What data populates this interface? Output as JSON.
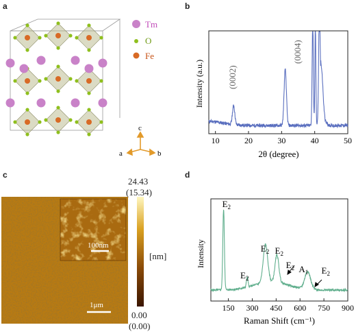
{
  "panels": {
    "a": {
      "letter": "a",
      "legend": [
        {
          "label": "Tm",
          "color": "#c982c8"
        },
        {
          "label": "O",
          "color": "#8fbf1e"
        },
        {
          "label": "Fe",
          "color": "#d86a25"
        }
      ],
      "axes": {
        "c": "c",
        "a": "a",
        "b": "b"
      }
    },
    "b": {
      "letter": "b",
      "ylabel": "Intensity (a.u.)",
      "xlabel": "2θ (degree)",
      "annotations": [
        "(0002)",
        "(0004)"
      ]
    },
    "c": {
      "letter": "c",
      "colorbar_top": "24.43",
      "colorbar_top_paren": "(15.34)",
      "colorbar_unit": "[nm]",
      "colorbar_bottom": "0.00",
      "colorbar_bottom_paren": "(0.00)",
      "scale_main": "1μm",
      "scale_inset": "100nm"
    },
    "d": {
      "letter": "d",
      "ylabel": "Intensity",
      "xlabel": "Raman Shift (cm⁻¹)"
    }
  },
  "chart_data": [
    {
      "type": "line",
      "panel": "b",
      "xlabel": "2θ (degree)",
      "ylabel": "Intensity (a.u.)",
      "xlim": [
        8,
        50
      ],
      "xticks": [
        10,
        20,
        30,
        40,
        50
      ],
      "series": [
        {
          "color": "#5a6fbf",
          "peaks": [
            {
              "x": 15.5,
              "label": "(0002)"
            },
            {
              "x": 31.1,
              "label": "(0004)"
            },
            {
              "x": 39.4
            },
            {
              "x": 40.2
            },
            {
              "x": 41.4
            }
          ]
        }
      ]
    },
    {
      "type": "line",
      "panel": "d",
      "xlabel": "Raman Shift (cm⁻¹)",
      "ylabel": "Intensity",
      "xlim": [
        40,
        900
      ],
      "xticks": [
        150,
        300,
        450,
        600,
        750,
        900
      ],
      "series": [
        {
          "color": "#5fae8c",
          "peaks": [
            {
              "x": 120,
              "label": "E2"
            },
            {
              "x": 268,
              "label": "E2"
            },
            {
              "x": 383,
              "label": "E2"
            },
            {
              "x": 455,
              "label": "E2"
            },
            {
              "x": 490,
              "label": "E2"
            },
            {
              "x": 648,
              "label": "A1"
            },
            {
              "x": 700,
              "label": "E2"
            }
          ]
        }
      ]
    }
  ]
}
